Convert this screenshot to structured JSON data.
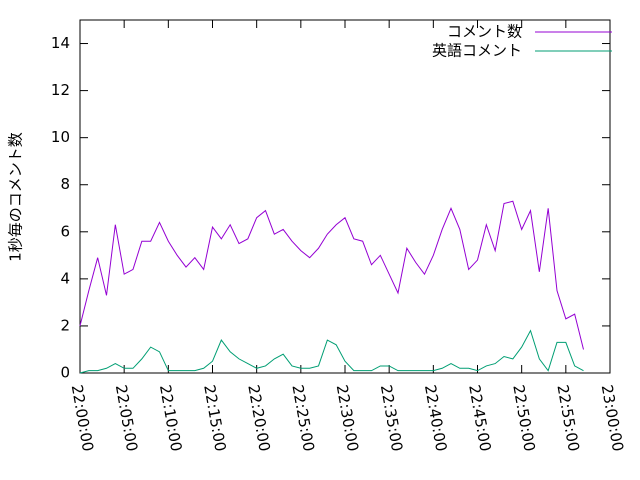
{
  "chart_data": {
    "type": "line",
    "ylabel": "1秒毎のコメント数",
    "x": [
      "22:00:00",
      "22:01:00",
      "22:02:00",
      "22:03:00",
      "22:04:00",
      "22:05:00",
      "22:06:00",
      "22:07:00",
      "22:08:00",
      "22:09:00",
      "22:10:00",
      "22:11:00",
      "22:12:00",
      "22:13:00",
      "22:14:00",
      "22:15:00",
      "22:16:00",
      "22:17:00",
      "22:18:00",
      "22:19:00",
      "22:20:00",
      "22:21:00",
      "22:22:00",
      "22:23:00",
      "22:24:00",
      "22:25:00",
      "22:26:00",
      "22:27:00",
      "22:28:00",
      "22:29:00",
      "22:30:00",
      "22:31:00",
      "22:32:00",
      "22:33:00",
      "22:34:00",
      "22:35:00",
      "22:36:00",
      "22:37:00",
      "22:38:00",
      "22:39:00",
      "22:40:00",
      "22:41:00",
      "22:42:00",
      "22:43:00",
      "22:44:00",
      "22:45:00",
      "22:46:00",
      "22:47:00",
      "22:48:00",
      "22:49:00",
      "22:50:00",
      "22:51:00",
      "22:52:00",
      "22:53:00",
      "22:54:00",
      "22:55:00",
      "22:56:00",
      "22:57:00"
    ],
    "series": [
      {
        "name": "コメント数",
        "color": "#9400d3",
        "values": [
          2.0,
          3.5,
          4.9,
          3.3,
          6.3,
          4.2,
          4.4,
          5.6,
          5.6,
          6.4,
          5.6,
          5.0,
          4.5,
          4.9,
          4.4,
          6.2,
          5.7,
          6.3,
          5.5,
          5.7,
          6.6,
          6.9,
          5.9,
          6.1,
          5.6,
          5.2,
          4.9,
          5.3,
          5.9,
          6.3,
          6.6,
          5.7,
          5.6,
          4.6,
          5.0,
          4.2,
          3.4,
          5.3,
          4.7,
          4.2,
          5.0,
          6.1,
          7.0,
          6.1,
          4.4,
          4.8,
          6.3,
          5.2,
          7.2,
          7.3,
          6.1,
          6.9,
          4.3,
          7.0,
          3.5,
          2.3,
          2.5,
          1.0
        ]
      },
      {
        "name": "英語コメント",
        "color": "#009e73",
        "values": [
          0.0,
          0.1,
          0.1,
          0.2,
          0.4,
          0.2,
          0.2,
          0.6,
          1.1,
          0.9,
          0.1,
          0.1,
          0.1,
          0.1,
          0.2,
          0.5,
          1.4,
          0.9,
          0.6,
          0.4,
          0.2,
          0.3,
          0.6,
          0.8,
          0.3,
          0.2,
          0.2,
          0.3,
          1.4,
          1.2,
          0.5,
          0.1,
          0.1,
          0.1,
          0.3,
          0.3,
          0.1,
          0.1,
          0.1,
          0.1,
          0.1,
          0.2,
          0.4,
          0.2,
          0.2,
          0.1,
          0.3,
          0.4,
          0.7,
          0.6,
          1.1,
          1.8,
          0.6,
          0.1,
          1.3,
          1.3,
          0.3,
          0.1
        ]
      }
    ],
    "xlim": [
      "22:00:00",
      "23:00:00"
    ],
    "xticks": [
      "22:00:00",
      "22:05:00",
      "22:10:00",
      "22:15:00",
      "22:20:00",
      "22:25:00",
      "22:30:00",
      "22:35:00",
      "22:40:00",
      "22:45:00",
      "22:50:00",
      "22:55:00",
      "23:00:00"
    ],
    "ylim": [
      0,
      15
    ],
    "yticks": [
      0,
      2,
      4,
      6,
      8,
      10,
      12,
      14
    ],
    "legend": "top-right"
  }
}
